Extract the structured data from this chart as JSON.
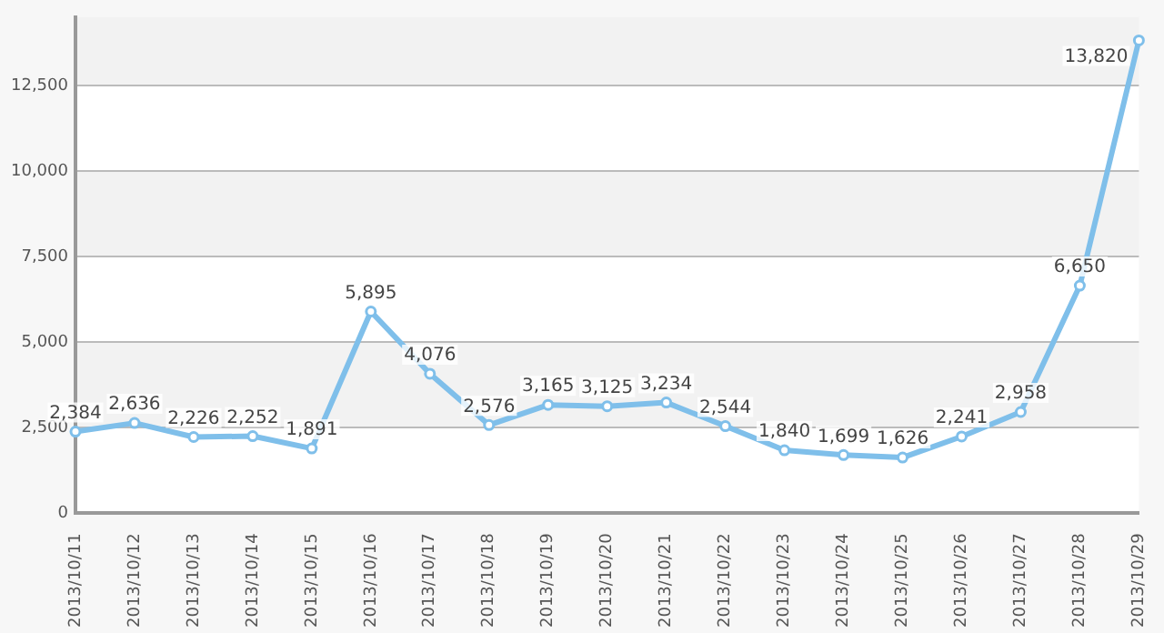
{
  "chart_data": {
    "type": "line",
    "categories": [
      "2013/10/11",
      "2013/10/12",
      "2013/10/13",
      "2013/10/14",
      "2013/10/15",
      "2013/10/16",
      "2013/10/17",
      "2013/10/18",
      "2013/10/19",
      "2013/10/20",
      "2013/10/21",
      "2013/10/22",
      "2013/10/23",
      "2013/10/24",
      "2013/10/25",
      "2013/10/26",
      "2013/10/27",
      "2013/10/28",
      "2013/10/29"
    ],
    "series": [
      {
        "color": "#7fbfea",
        "values": [
          2384,
          2636,
          2226,
          2252,
          1891,
          5895,
          4076,
          2576,
          3165,
          3125,
          3234,
          2544,
          1840,
          1699,
          1626,
          2241,
          2958,
          6650,
          13820
        ],
        "value_labels": [
          "2,384",
          "2,636",
          "2,226",
          "2,252",
          "1,891",
          "5,895",
          "4,076",
          "2,576",
          "3,165",
          "3,125",
          "3,234",
          "2,544",
          "1,840",
          "1,699",
          "1,626",
          "2,241",
          "2,958",
          "6,650",
          "13,820"
        ]
      }
    ],
    "ylim": [
      0,
      14500
    ],
    "yticks": [
      0,
      {
        "value": 2500,
        "label": "2,500"
      },
      {
        "value": 5000,
        "label": "5,000"
      },
      {
        "value": 7500,
        "label": "7,500"
      },
      {
        "value": 10000,
        "label": "10,000"
      },
      {
        "value": 12500,
        "label": "12,500"
      }
    ],
    "grid": "y",
    "marker": "circle",
    "legend": false
  }
}
